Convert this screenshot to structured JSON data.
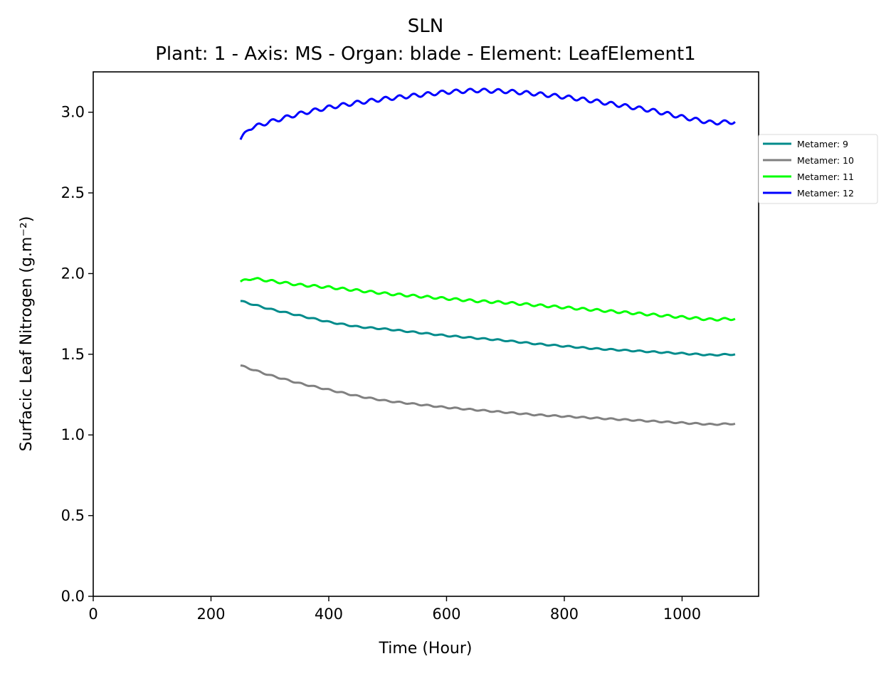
{
  "chart_data": {
    "type": "line",
    "title": "SLN",
    "subtitle": "Plant: 1 - Axis: MS - Organ: blade - Element: LeafElement1",
    "xlabel": "Time (Hour)",
    "ylabel": "Surfacic Leaf Nitrogen (g.m⁻²)",
    "xlim": [
      0,
      1130
    ],
    "ylim": [
      0,
      3.25
    ],
    "xticks": [
      0,
      200,
      400,
      600,
      800,
      1000
    ],
    "xtick_labels": [
      "0",
      "200",
      "400",
      "600",
      "800",
      "1000"
    ],
    "yticks": [
      0,
      0.5,
      1,
      1.5,
      2,
      2.5,
      3
    ],
    "ytick_labels": [
      "0.0",
      "0.5",
      "1.0",
      "1.5",
      "2.0",
      "2.5",
      "3.0"
    ],
    "grid": false,
    "legend_position": "right, outside plot area",
    "x_range": [
      250,
      1090
    ],
    "series": [
      {
        "name": "Metamer: 9",
        "color": "#008b8b",
        "x": [
          250,
          300,
          350,
          400,
          450,
          500,
          550,
          600,
          650,
          700,
          750,
          800,
          850,
          900,
          950,
          1000,
          1050,
          1090
        ],
        "y": [
          1.83,
          1.78,
          1.74,
          1.7,
          1.67,
          1.655,
          1.635,
          1.615,
          1.6,
          1.585,
          1.565,
          1.55,
          1.535,
          1.525,
          1.515,
          1.505,
          1.495,
          1.5
        ],
        "wiggle": 0.004
      },
      {
        "name": "Metamer: 10",
        "color": "#808080",
        "x": [
          250,
          300,
          350,
          400,
          450,
          500,
          550,
          600,
          650,
          700,
          750,
          800,
          850,
          900,
          950,
          1000,
          1050,
          1090
        ],
        "y": [
          1.43,
          1.37,
          1.32,
          1.28,
          1.24,
          1.21,
          1.19,
          1.17,
          1.155,
          1.14,
          1.125,
          1.115,
          1.105,
          1.095,
          1.085,
          1.075,
          1.065,
          1.07
        ],
        "wiggle": 0.004
      },
      {
        "name": "Metamer: 11",
        "color": "#00ff00",
        "x": [
          250,
          270,
          300,
          350,
          400,
          450,
          500,
          550,
          600,
          650,
          700,
          750,
          800,
          850,
          900,
          950,
          1000,
          1050,
          1090
        ],
        "y": [
          1.95,
          1.97,
          1.955,
          1.93,
          1.915,
          1.895,
          1.875,
          1.86,
          1.845,
          1.83,
          1.82,
          1.805,
          1.79,
          1.775,
          1.76,
          1.745,
          1.73,
          1.715,
          1.72
        ],
        "wiggle": 0.007
      },
      {
        "name": "Metamer: 12",
        "color": "#0000ff",
        "x": [
          250,
          265,
          300,
          350,
          400,
          450,
          500,
          550,
          600,
          650,
          700,
          750,
          800,
          850,
          900,
          950,
          1000,
          1050,
          1090
        ],
        "y": [
          2.83,
          2.9,
          2.94,
          2.99,
          3.03,
          3.06,
          3.085,
          3.105,
          3.125,
          3.135,
          3.13,
          3.115,
          3.095,
          3.07,
          3.04,
          3.01,
          2.97,
          2.935,
          2.94
        ],
        "wiggle": 0.012
      }
    ]
  }
}
